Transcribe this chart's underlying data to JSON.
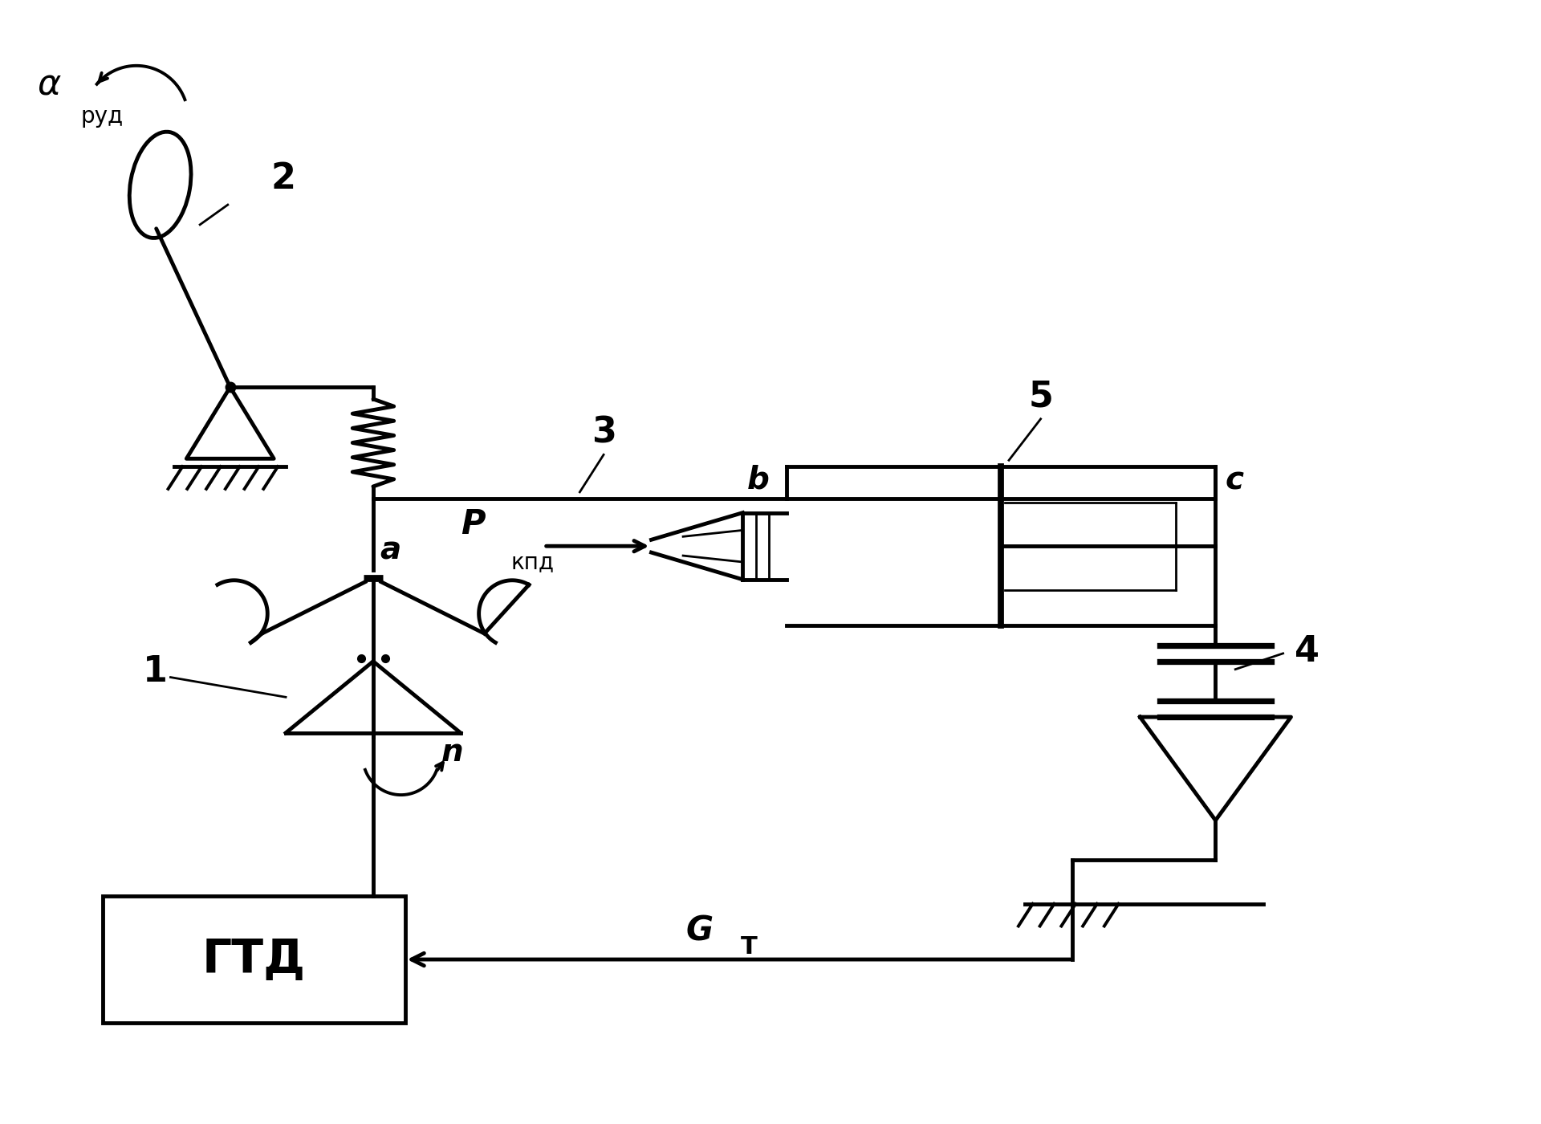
{
  "bg_color": "#ffffff",
  "line_color": "#000000",
  "lw": 2.8,
  "lw_thick": 3.5,
  "lw_thin": 2.0,
  "fig_width": 19.2,
  "fig_height": 14.0,
  "labels": {
    "GTD": "ГТД",
    "alpha": "α",
    "rud": "руд",
    "n": "n",
    "P": "P",
    "kpd": "кпд",
    "G": "G",
    "T": "Т",
    "num1": "1",
    "num2": "2",
    "num3": "3",
    "num4": "4",
    "num5": "5",
    "a": "a",
    "b": "b",
    "c": "c"
  }
}
